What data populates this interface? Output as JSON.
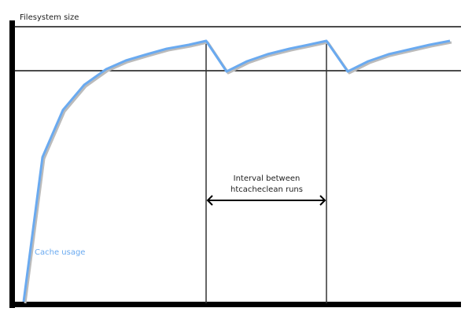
{
  "diagram": {
    "y_axis_label": "Filesystem size",
    "series_label": "Cache usage",
    "interval_label_line1": "Interval between",
    "interval_label_line2": "htcacheclean runs",
    "colors": {
      "cache_line": "#6aaaf0",
      "axes": "#000000",
      "label_blue": "#6aaaf0"
    }
  }
}
